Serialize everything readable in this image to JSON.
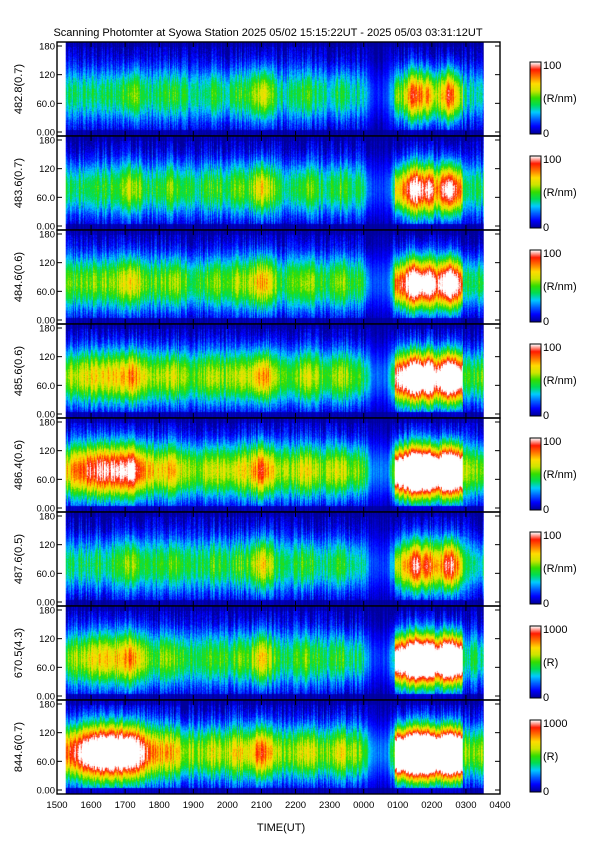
{
  "title": "Scanning Photomter at Syowa Station  2025 05/02 15:15:22UT - 2025 05/03 03:31:12UT",
  "colors": {
    "background": "#ffffff",
    "axis": "#000000",
    "colormap": [
      "#00009a",
      "#0000ff",
      "#0060ff",
      "#00ccff",
      "#00dd55",
      "#33dd00",
      "#cce600",
      "#ffdd00",
      "#ff7700",
      "#ff1a00",
      "#ffffff"
    ]
  },
  "chart_data": {
    "type": "heatmap",
    "xlabel": "TIME(UT)",
    "x_ticks": [
      "1500",
      "1600",
      "1700",
      "1800",
      "1900",
      "2000",
      "2100",
      "2200",
      "2300",
      "0000",
      "0100",
      "0200",
      "0300",
      "0400"
    ],
    "x_range_hours": [
      15.0,
      28.0
    ],
    "data_range_hours": [
      15.256,
      27.52
    ],
    "y_ticks": [
      "0.00",
      "60.0",
      "120",
      "180"
    ],
    "ylim": [
      0,
      180
    ],
    "grid": false,
    "panels": [
      {
        "ylabel": "482.8(0.7)",
        "unit": "(R/nm)",
        "cbar_min": "0",
        "cbar_max": "100",
        "vmax": 100,
        "base": 0.35,
        "late_gain": 0.2,
        "early_gain": 0.05
      },
      {
        "ylabel": "483.6(0.7)",
        "unit": "(R/nm)",
        "cbar_min": "0",
        "cbar_max": "100",
        "vmax": 100,
        "base": 0.4,
        "late_gain": 0.35,
        "early_gain": 0.05
      },
      {
        "ylabel": "484.6(0.6)",
        "unit": "(R/nm)",
        "cbar_min": "0",
        "cbar_max": "100",
        "vmax": 100,
        "base": 0.45,
        "late_gain": 0.45,
        "early_gain": 0.1
      },
      {
        "ylabel": "485.6(0.6)",
        "unit": "(R/nm)",
        "cbar_min": "0",
        "cbar_max": "100",
        "vmax": 100,
        "base": 0.5,
        "late_gain": 0.55,
        "early_gain": 0.2
      },
      {
        "ylabel": "486.4(0.6)",
        "unit": "(R/nm)",
        "cbar_min": "0",
        "cbar_max": "100",
        "vmax": 100,
        "base": 0.55,
        "late_gain": 0.75,
        "early_gain": 0.45
      },
      {
        "ylabel": "487.6(0.5)",
        "unit": "(R/nm)",
        "cbar_min": "0",
        "cbar_max": "100",
        "vmax": 100,
        "base": 0.38,
        "late_gain": 0.25,
        "early_gain": 0.05
      },
      {
        "ylabel": "670.5(4.3)",
        "unit": "(R)",
        "cbar_min": "0",
        "cbar_max": "1000",
        "vmax": 1000,
        "base": 0.4,
        "late_gain": 0.8,
        "early_gain": 0.3
      },
      {
        "ylabel": "844.6(0.7)",
        "unit": "(R)",
        "cbar_min": "0",
        "cbar_max": "1000",
        "vmax": 1000,
        "base": 0.55,
        "late_gain": 0.9,
        "early_gain": 0.8
      }
    ]
  }
}
